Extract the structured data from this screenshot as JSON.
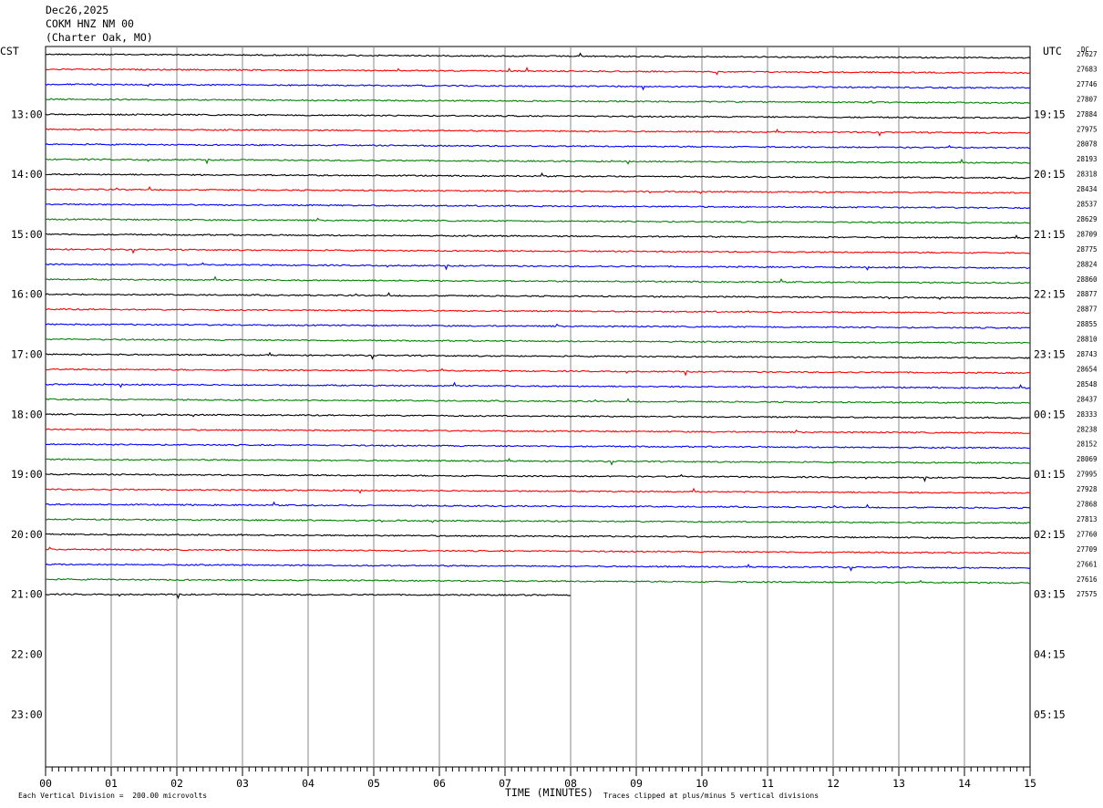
{
  "header": {
    "date": "Dec26,2025",
    "station": "COKM HNZ NM 00",
    "location": "(Charter Oak, MO)"
  },
  "chart_data": {
    "type": "line",
    "title": "",
    "left_axis_label": "CST",
    "right_axis_label": "UTC",
    "dc_label": "DC",
    "xlabel": "TIME (MINUTES)",
    "x_ticks": [
      "00",
      "01",
      "02",
      "03",
      "04",
      "05",
      "06",
      "07",
      "08",
      "09",
      "10",
      "11",
      "12",
      "13",
      "14",
      "15"
    ],
    "xlim": [
      0,
      15
    ],
    "rows_total": 48,
    "rows_per_hour": 4,
    "trace_colors": [
      "#000000",
      "#ff0000",
      "#0000ff",
      "#008000"
    ],
    "cst_hour_labels": [
      "13:00",
      "14:00",
      "15:00",
      "16:00",
      "17:00",
      "18:00",
      "19:00",
      "20:00",
      "21:00",
      "22:00",
      "23:00"
    ],
    "utc_hour_labels": [
      "19:15",
      "20:15",
      "21:15",
      "22:15",
      "23:15",
      "00:15",
      "01:15",
      "02:15",
      "03:15",
      "04:15",
      "05:15"
    ],
    "first_labeled_row": 4,
    "dc_values": [
      "27627",
      "27683",
      "27746",
      "27807",
      "27884",
      "27975",
      "28078",
      "28193",
      "28318",
      "28434",
      "28537",
      "28629",
      "28709",
      "28775",
      "28824",
      "28860",
      "28877",
      "28877",
      "28855",
      "28810",
      "28743",
      "28654",
      "28548",
      "28437",
      "28333",
      "28238",
      "28152",
      "28069",
      "27995",
      "27928",
      "27868",
      "27813",
      "27760",
      "27709",
      "27661",
      "27616",
      "27575"
    ],
    "last_trace_end_minute": 8.0,
    "footer_left": "Each Vertical Division =  200.00 microvolts",
    "footer_right": "Traces clipped at plus/minus 5 vertical divisions"
  }
}
